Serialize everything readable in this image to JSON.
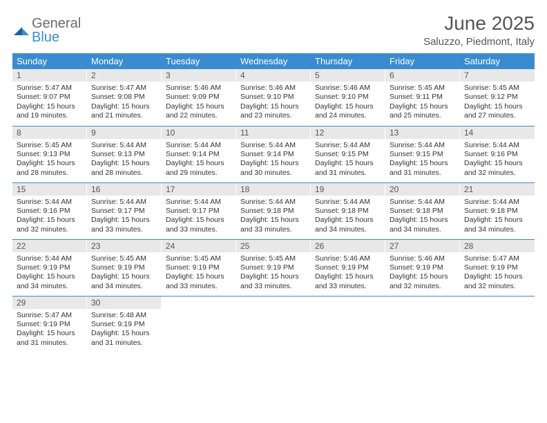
{
  "brand": {
    "general": "General",
    "blue": "Blue"
  },
  "title": "June 2025",
  "location": "Saluzzo, Piedmont, Italy",
  "colors": {
    "header_bg": "#3b8bd0",
    "header_text": "#ffffff",
    "daynum_bg": "#e8e8e8",
    "row_border": "#3b8bd0",
    "text": "#333333",
    "title_text": "#555555"
  },
  "weekdays": [
    "Sunday",
    "Monday",
    "Tuesday",
    "Wednesday",
    "Thursday",
    "Friday",
    "Saturday"
  ],
  "weeks": [
    [
      {
        "n": "1",
        "sunrise": "5:47 AM",
        "sunset": "9:07 PM",
        "daylight": "15 hours and 19 minutes."
      },
      {
        "n": "2",
        "sunrise": "5:47 AM",
        "sunset": "9:08 PM",
        "daylight": "15 hours and 21 minutes."
      },
      {
        "n": "3",
        "sunrise": "5:46 AM",
        "sunset": "9:09 PM",
        "daylight": "15 hours and 22 minutes."
      },
      {
        "n": "4",
        "sunrise": "5:46 AM",
        "sunset": "9:10 PM",
        "daylight": "15 hours and 23 minutes."
      },
      {
        "n": "5",
        "sunrise": "5:46 AM",
        "sunset": "9:10 PM",
        "daylight": "15 hours and 24 minutes."
      },
      {
        "n": "6",
        "sunrise": "5:45 AM",
        "sunset": "9:11 PM",
        "daylight": "15 hours and 25 minutes."
      },
      {
        "n": "7",
        "sunrise": "5:45 AM",
        "sunset": "9:12 PM",
        "daylight": "15 hours and 27 minutes."
      }
    ],
    [
      {
        "n": "8",
        "sunrise": "5:45 AM",
        "sunset": "9:13 PM",
        "daylight": "15 hours and 28 minutes."
      },
      {
        "n": "9",
        "sunrise": "5:44 AM",
        "sunset": "9:13 PM",
        "daylight": "15 hours and 28 minutes."
      },
      {
        "n": "10",
        "sunrise": "5:44 AM",
        "sunset": "9:14 PM",
        "daylight": "15 hours and 29 minutes."
      },
      {
        "n": "11",
        "sunrise": "5:44 AM",
        "sunset": "9:14 PM",
        "daylight": "15 hours and 30 minutes."
      },
      {
        "n": "12",
        "sunrise": "5:44 AM",
        "sunset": "9:15 PM",
        "daylight": "15 hours and 31 minutes."
      },
      {
        "n": "13",
        "sunrise": "5:44 AM",
        "sunset": "9:15 PM",
        "daylight": "15 hours and 31 minutes."
      },
      {
        "n": "14",
        "sunrise": "5:44 AM",
        "sunset": "9:16 PM",
        "daylight": "15 hours and 32 minutes."
      }
    ],
    [
      {
        "n": "15",
        "sunrise": "5:44 AM",
        "sunset": "9:16 PM",
        "daylight": "15 hours and 32 minutes."
      },
      {
        "n": "16",
        "sunrise": "5:44 AM",
        "sunset": "9:17 PM",
        "daylight": "15 hours and 33 minutes."
      },
      {
        "n": "17",
        "sunrise": "5:44 AM",
        "sunset": "9:17 PM",
        "daylight": "15 hours and 33 minutes."
      },
      {
        "n": "18",
        "sunrise": "5:44 AM",
        "sunset": "9:18 PM",
        "daylight": "15 hours and 33 minutes."
      },
      {
        "n": "19",
        "sunrise": "5:44 AM",
        "sunset": "9:18 PM",
        "daylight": "15 hours and 34 minutes."
      },
      {
        "n": "20",
        "sunrise": "5:44 AM",
        "sunset": "9:18 PM",
        "daylight": "15 hours and 34 minutes."
      },
      {
        "n": "21",
        "sunrise": "5:44 AM",
        "sunset": "9:18 PM",
        "daylight": "15 hours and 34 minutes."
      }
    ],
    [
      {
        "n": "22",
        "sunrise": "5:44 AM",
        "sunset": "9:19 PM",
        "daylight": "15 hours and 34 minutes."
      },
      {
        "n": "23",
        "sunrise": "5:45 AM",
        "sunset": "9:19 PM",
        "daylight": "15 hours and 34 minutes."
      },
      {
        "n": "24",
        "sunrise": "5:45 AM",
        "sunset": "9:19 PM",
        "daylight": "15 hours and 33 minutes."
      },
      {
        "n": "25",
        "sunrise": "5:45 AM",
        "sunset": "9:19 PM",
        "daylight": "15 hours and 33 minutes."
      },
      {
        "n": "26",
        "sunrise": "5:46 AM",
        "sunset": "9:19 PM",
        "daylight": "15 hours and 33 minutes."
      },
      {
        "n": "27",
        "sunrise": "5:46 AM",
        "sunset": "9:19 PM",
        "daylight": "15 hours and 32 minutes."
      },
      {
        "n": "28",
        "sunrise": "5:47 AM",
        "sunset": "9:19 PM",
        "daylight": "15 hours and 32 minutes."
      }
    ],
    [
      {
        "n": "29",
        "sunrise": "5:47 AM",
        "sunset": "9:19 PM",
        "daylight": "15 hours and 31 minutes."
      },
      {
        "n": "30",
        "sunrise": "5:48 AM",
        "sunset": "9:19 PM",
        "daylight": "15 hours and 31 minutes."
      },
      null,
      null,
      null,
      null,
      null
    ]
  ],
  "labels": {
    "sunrise": "Sunrise: ",
    "sunset": "Sunset: ",
    "daylight": "Daylight: "
  }
}
